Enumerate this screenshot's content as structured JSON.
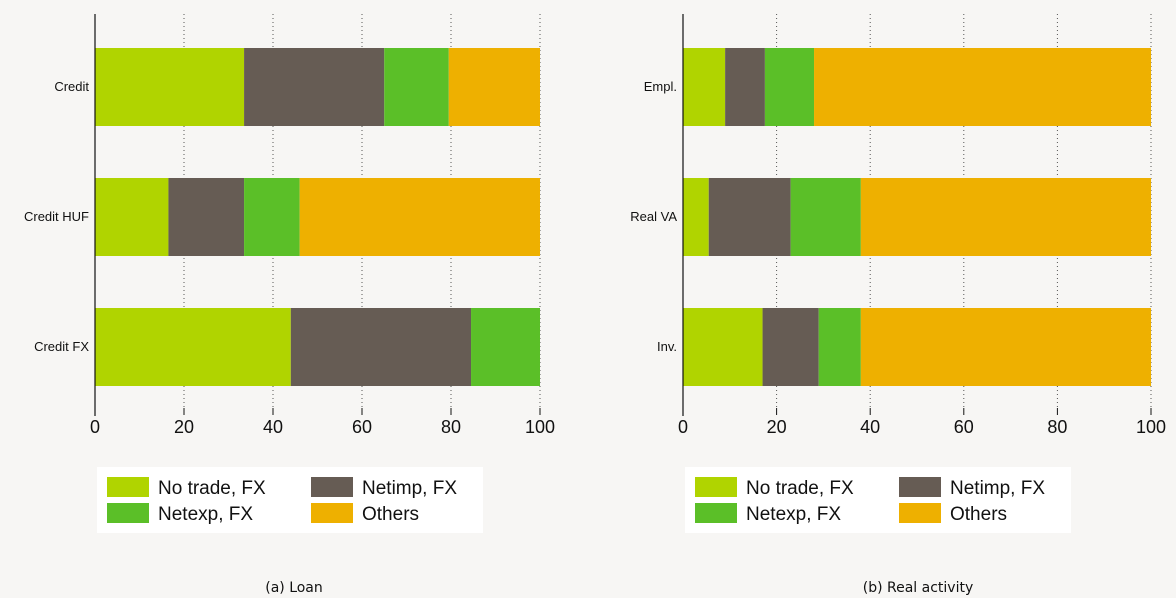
{
  "captions": {
    "a": "(a)  Loan",
    "b": "(b) Real activity"
  },
  "chart_data": [
    {
      "type": "bar",
      "orientation": "horizontal",
      "stacked": true,
      "title": "",
      "xlabel": "",
      "ylabel": "",
      "xlim": [
        0,
        100
      ],
      "xticks": [
        "0",
        "20",
        "40",
        "60",
        "80",
        "100"
      ],
      "grid": "vertical dotted",
      "legend_position": "bottom",
      "categories": [
        "Credit",
        "Credit HUF",
        "Credit FX"
      ],
      "series": [
        {
          "name": "No trade, FX",
          "color": "#b0d400",
          "values": [
            33.5,
            16.5,
            44
          ]
        },
        {
          "name": "Netimp, FX",
          "color": "#665c54",
          "values": [
            31.5,
            17,
            40.5
          ]
        },
        {
          "name": "Netexp, FX",
          "color": "#5bbf28",
          "values": [
            14.5,
            12.5,
            15.5
          ]
        },
        {
          "name": "Others",
          "color": "#eeb000",
          "values": [
            20.5,
            54,
            0
          ]
        }
      ]
    },
    {
      "type": "bar",
      "orientation": "horizontal",
      "stacked": true,
      "title": "",
      "xlabel": "",
      "ylabel": "",
      "xlim": [
        0,
        100
      ],
      "xticks": [
        "0",
        "20",
        "40",
        "60",
        "80",
        "100"
      ],
      "grid": "vertical dotted",
      "legend_position": "bottom",
      "categories": [
        "Empl.",
        "Real VA",
        "Inv."
      ],
      "series": [
        {
          "name": "No trade, FX",
          "color": "#b0d400",
          "values": [
            9,
            5.5,
            17
          ]
        },
        {
          "name": "Netimp, FX",
          "color": "#665c54",
          "values": [
            8.5,
            17.5,
            12
          ]
        },
        {
          "name": "Netexp, FX",
          "color": "#5bbf28",
          "values": [
            10.5,
            15,
            9
          ]
        },
        {
          "name": "Others",
          "color": "#eeb000",
          "values": [
            72,
            62,
            62
          ]
        }
      ]
    }
  ]
}
